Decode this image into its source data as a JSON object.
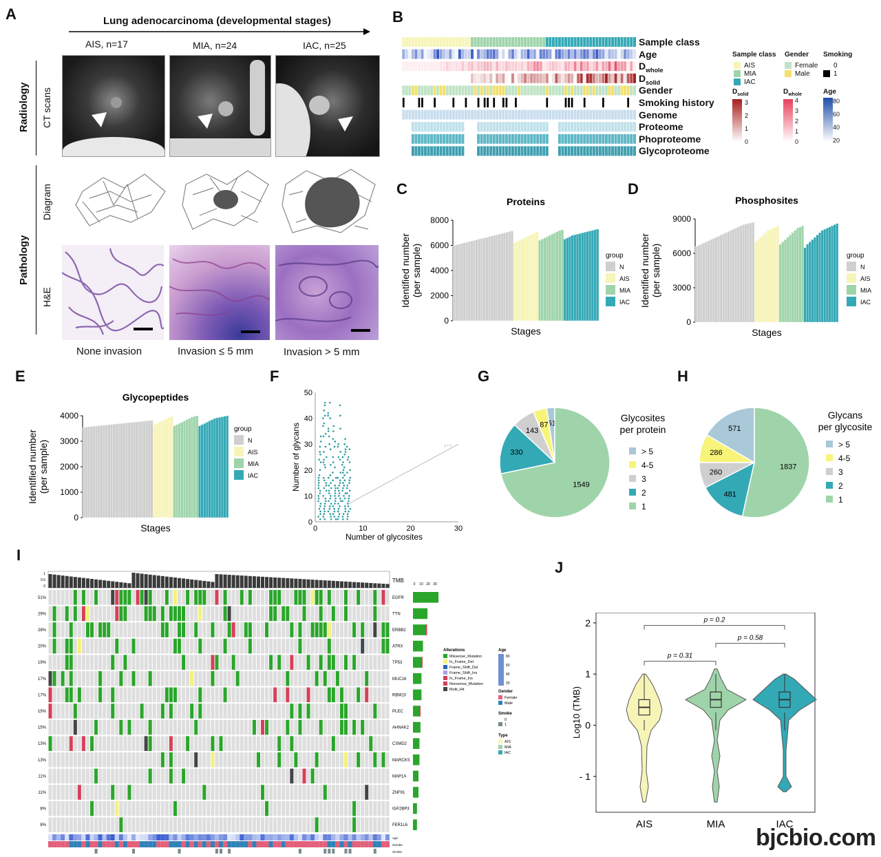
{
  "watermark": "bjcbio.com",
  "panel_labels": {
    "A": "A",
    "B": "B",
    "C": "C",
    "D": "D",
    "E": "E",
    "F": "F",
    "G": "G",
    "H": "H",
    "I": "I",
    "J": "J"
  },
  "panelA": {
    "title": "Lung adenocarcinoma  (developmental stages)",
    "cols": [
      "AIS, n=17",
      "MIA, n=24",
      "IAC, n=25"
    ],
    "row_group1": "Radiology",
    "row_group2": "Pathology",
    "row_ct": "CT scans",
    "row_diagram": "Diagram",
    "row_he": "H&E",
    "captions": [
      "None invasion",
      "Invasion ≤ 5 mm",
      "Invasion > 5 mm"
    ]
  },
  "panelB": {
    "rows": [
      "Sample class",
      "Age",
      "D",
      "D",
      "Gender",
      "Smoking history",
      "Genome",
      "Proteome",
      "Phoproteome",
      "Glycoproteome"
    ],
    "row_subscripts": [
      "",
      "",
      "whole",
      "solid",
      "",
      "",
      "",
      "",
      "",
      ""
    ],
    "legend_sample_class": {
      "title": "Sample class",
      "items": [
        "AIS",
        "MIA",
        "IAC"
      ]
    },
    "legend_gender": {
      "title": "Gender",
      "items": [
        "Female",
        "Male"
      ]
    },
    "legend_smoking": {
      "title": "Smoking",
      "items": [
        "0",
        "1"
      ]
    },
    "legend_dsolid": {
      "title": "D",
      "sub": "solid",
      "ticks": [
        "3",
        "2",
        "1",
        "0"
      ]
    },
    "legend_dwhole": {
      "title": "D",
      "sub": "whole",
      "ticks": [
        "4",
        "3",
        "2",
        "1",
        "0"
      ]
    },
    "legend_age": {
      "title": "Age",
      "ticks": [
        "80",
        "60",
        "40",
        "20"
      ]
    }
  },
  "colors": {
    "N": "#cfcfcf",
    "AIS": "#f7f4b8",
    "MIA": "#9fd4aa",
    "IAC": "#34a9b6",
    "missense": "#2aa62a",
    "nonsense": "#d6405a",
    "multi": "#444444",
    "frame_ins": "#a9a3e3",
    "frame_del": "#f2f27a",
    "frame_shift_del": "#2966b8"
  },
  "chart_data": [
    {
      "id": "C",
      "type": "bar",
      "title": "Proteins",
      "xlabel": "Stages",
      "ylabel": "Identified number\n(per sample)",
      "ylim": [
        0,
        8000
      ],
      "yticks": [
        "0",
        "2000",
        "4000",
        "6000",
        "8000"
      ],
      "legend_title": "group",
      "legend": [
        "N",
        "AIS",
        "MIA",
        "IAC"
      ],
      "groups": [
        {
          "name": "N",
          "values": [
            6000,
            6050,
            6100,
            6150,
            6200,
            6250,
            6300,
            6350,
            6400,
            6450,
            6500,
            6550,
            6600,
            6650,
            6700,
            6750,
            6800,
            6850,
            6900,
            6950,
            7000,
            7050,
            7100,
            7150
          ]
        },
        {
          "name": "AIS",
          "values": [
            6200,
            6300,
            6400,
            6500,
            6600,
            6700,
            6800,
            6900,
            7000,
            7100
          ]
        },
        {
          "name": "MIA",
          "values": [
            6400,
            6500,
            6600,
            6700,
            6800,
            6900,
            7000,
            7100,
            7200,
            7250
          ]
        },
        {
          "name": "IAC",
          "values": [
            6500,
            6600,
            6700,
            6800,
            6850,
            6900,
            6950,
            7000,
            7050,
            7100,
            7150,
            7200,
            7250,
            7300
          ]
        }
      ]
    },
    {
      "id": "D",
      "type": "bar",
      "title": "Phosphosites",
      "xlabel": "Stages",
      "ylabel": "Identified number\n(per sample)",
      "ylim": [
        0,
        9000
      ],
      "yticks": [
        "0",
        "3000",
        "6000",
        "9000"
      ],
      "legend_title": "group",
      "legend": [
        "N",
        "AIS",
        "MIA",
        "IAC"
      ],
      "groups": [
        {
          "name": "N",
          "values": [
            6600,
            6700,
            6800,
            6900,
            7000,
            7100,
            7200,
            7300,
            7400,
            7500,
            7600,
            7700,
            7800,
            7900,
            8000,
            8100,
            8200,
            8300,
            8400,
            8500,
            8550,
            8600,
            8650,
            8700
          ]
        },
        {
          "name": "AIS",
          "values": [
            7000,
            7200,
            7400,
            7600,
            7800,
            8000,
            8100,
            8200,
            8300,
            8400
          ]
        },
        {
          "name": "MIA",
          "values": [
            6800,
            7000,
            7200,
            7400,
            7600,
            7800,
            8000,
            8200,
            8300,
            8400
          ]
        },
        {
          "name": "IAC",
          "values": [
            6500,
            6800,
            7000,
            7200,
            7400,
            7600,
            7800,
            8000,
            8100,
            8200,
            8300,
            8400,
            8500,
            8600
          ]
        }
      ]
    },
    {
      "id": "E",
      "type": "bar",
      "title": "Glycopeptides",
      "xlabel": "Stages",
      "ylabel": "Identified number\n(per sample)",
      "ylim": [
        0,
        4000
      ],
      "yticks": [
        "0",
        "1000",
        "2000",
        "3000",
        "4000"
      ],
      "legend_title": "group",
      "legend": [
        "N",
        "AIS",
        "MIA",
        "IAC"
      ],
      "groups": [
        {
          "name": "N",
          "values": [
            3550,
            3560,
            3570,
            3580,
            3590,
            3600,
            3610,
            3620,
            3630,
            3640,
            3650,
            3660,
            3670,
            3680,
            3690,
            3700,
            3710,
            3720,
            3730,
            3740,
            3750,
            3760,
            3770,
            3780,
            3790,
            3800,
            3810,
            3820
          ]
        },
        {
          "name": "AIS",
          "values": [
            3650,
            3700,
            3750,
            3800,
            3850,
            3900,
            3950,
            3980
          ]
        },
        {
          "name": "MIA",
          "values": [
            3600,
            3650,
            3700,
            3750,
            3800,
            3850,
            3900,
            3950,
            3980,
            4000
          ]
        },
        {
          "name": "IAC",
          "values": [
            3600,
            3650,
            3700,
            3750,
            3800,
            3850,
            3900,
            3920,
            3940,
            3960,
            3980,
            4000
          ]
        }
      ]
    },
    {
      "id": "F",
      "type": "scatter",
      "xlabel": "Number of glycosites",
      "ylabel": "Number of glycans",
      "xlim": [
        0,
        30
      ],
      "ylim": [
        0,
        50
      ],
      "xticks": [
        "0",
        "10",
        "20",
        "30"
      ],
      "yticks": [
        "0",
        "10",
        "20",
        "30",
        "40",
        "50"
      ],
      "annotation": "y = x"
    },
    {
      "id": "G",
      "type": "pie",
      "title": "Glycosites\nper protein",
      "legend": [
        "> 5",
        "4-5",
        "3",
        "2",
        "1"
      ],
      "slices": [
        {
          "label": "> 5",
          "value": 51,
          "color": "#a9c8d8"
        },
        {
          "label": "4-5",
          "value": 87,
          "color": "#f7f47a"
        },
        {
          "label": "3",
          "value": 143,
          "color": "#cfcfcf"
        },
        {
          "label": "2",
          "value": 330,
          "color": "#34a9b6"
        },
        {
          "label": "1",
          "value": 1549,
          "color": "#9fd4aa"
        }
      ]
    },
    {
      "id": "H",
      "type": "pie",
      "title": "Glycans\nper glycosite",
      "legend": [
        "> 5",
        "4-5",
        "3",
        "2",
        "1"
      ],
      "slices": [
        {
          "label": "> 5",
          "value": 571,
          "color": "#a9c8d8"
        },
        {
          "label": "4-5",
          "value": 286,
          "color": "#f7f47a"
        },
        {
          "label": "3",
          "value": 260,
          "color": "#cfcfcf"
        },
        {
          "label": "2",
          "value": 481,
          "color": "#34a9b6"
        },
        {
          "label": "1",
          "value": 1837,
          "color": "#9fd4aa"
        }
      ]
    },
    {
      "id": "J",
      "type": "violin",
      "ylabel": "Log10 (TMB)",
      "ylim": [
        -1.7,
        2.2
      ],
      "yticks": [
        "- 1",
        "0",
        "1",
        "2"
      ],
      "categories": [
        "AIS",
        "MIA",
        "IAC"
      ],
      "medians": [
        0.35,
        0.5,
        0.5
      ],
      "pvalues": [
        {
          "pair": [
            "AIS",
            "MIA"
          ],
          "label": "p = 0.31"
        },
        {
          "pair": [
            "MIA",
            "IAC"
          ],
          "label": "p = 0.58"
        },
        {
          "pair": [
            "AIS",
            "IAC"
          ],
          "label": "p = 0.2"
        }
      ]
    }
  ],
  "panelI": {
    "tmb_label": "TMB",
    "tmb_ticks": [
      "1",
      "0.5",
      "0"
    ],
    "freq_axis_ticks": [
      "0",
      "10",
      "20",
      "30"
    ],
    "genes": [
      "EGFR",
      "TTN",
      "ERBB2",
      "ATRX",
      "TP53",
      "MUC16",
      "RBM10",
      "PLEC",
      "AHNAK2",
      "CSMD2",
      "MARCKS",
      "MAP1A",
      "ZNF91",
      "IGF2BP3",
      "FER1L6"
    ],
    "freqs": [
      "51%",
      "29%",
      "28%",
      "20%",
      "19%",
      "17%",
      "17%",
      "15%",
      "15%",
      "13%",
      "13%",
      "11%",
      "11%",
      "8%",
      "8%"
    ],
    "freq_values": [
      51,
      29,
      28,
      20,
      19,
      17,
      17,
      15,
      15,
      13,
      13,
      11,
      11,
      8,
      8
    ],
    "bottom_tracks": [
      "Age",
      "Gender",
      "Smoke",
      "Type"
    ],
    "legend_alterations": {
      "title": "Alterations",
      "items": [
        "Missense_Mutation",
        "In_Frame_Del",
        "Frame_Shift_Del",
        "Frame_Shift_Ins",
        "In_Frame_Ins",
        "Nonsense_Mutation",
        "Multi_Hit"
      ]
    },
    "legend_age": {
      "title": "Age",
      "ticks": [
        "80",
        "60",
        "40",
        "20"
      ]
    },
    "legend_gender": {
      "title": "Gender",
      "items": [
        "Female",
        "Male"
      ]
    },
    "legend_smoke": {
      "title": "Smoke",
      "items": [
        "0",
        "1"
      ]
    },
    "legend_type": {
      "title": "Type",
      "items": [
        "AIS",
        "MIA",
        "IAC"
      ]
    }
  }
}
